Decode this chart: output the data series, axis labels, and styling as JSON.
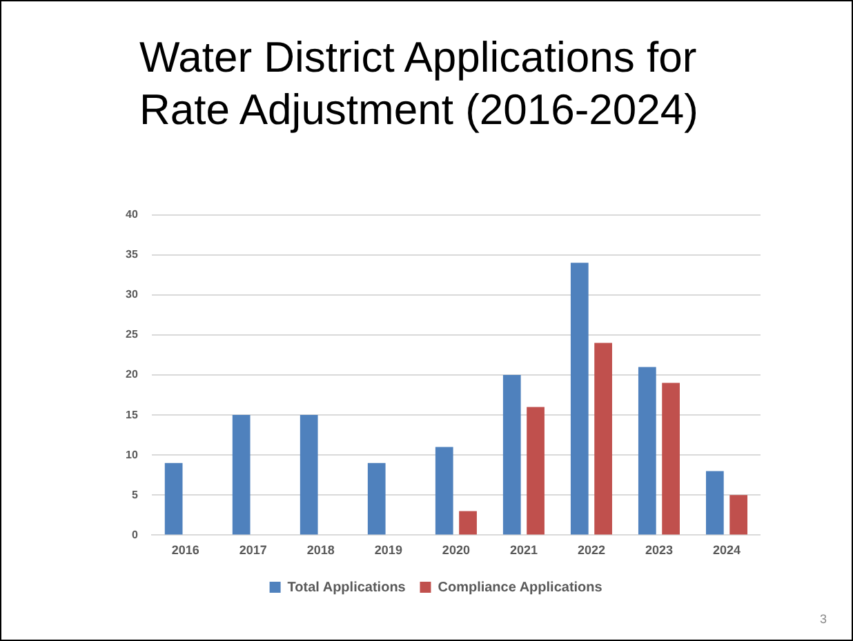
{
  "chart_data": {
    "type": "bar",
    "title": "Water District Applications for Rate Adjustment (2016-2024)",
    "categories": [
      "2016",
      "2017",
      "2018",
      "2019",
      "2020",
      "2021",
      "2022",
      "2023",
      "2024"
    ],
    "series": [
      {
        "name": "Total Applications",
        "color": "#4f81bd",
        "values": [
          9,
          15,
          15,
          9,
          11,
          20,
          34,
          21,
          8
        ]
      },
      {
        "name": "Compliance Applications",
        "color": "#c0504d",
        "values": [
          null,
          null,
          null,
          null,
          3,
          16,
          24,
          19,
          5
        ]
      }
    ],
    "ylim": [
      0,
      40
    ],
    "yticks": [
      0,
      5,
      10,
      15,
      20,
      25,
      30,
      35,
      40
    ],
    "grid": "y",
    "legend": "bottom",
    "annotations": [
      "3"
    ]
  }
}
